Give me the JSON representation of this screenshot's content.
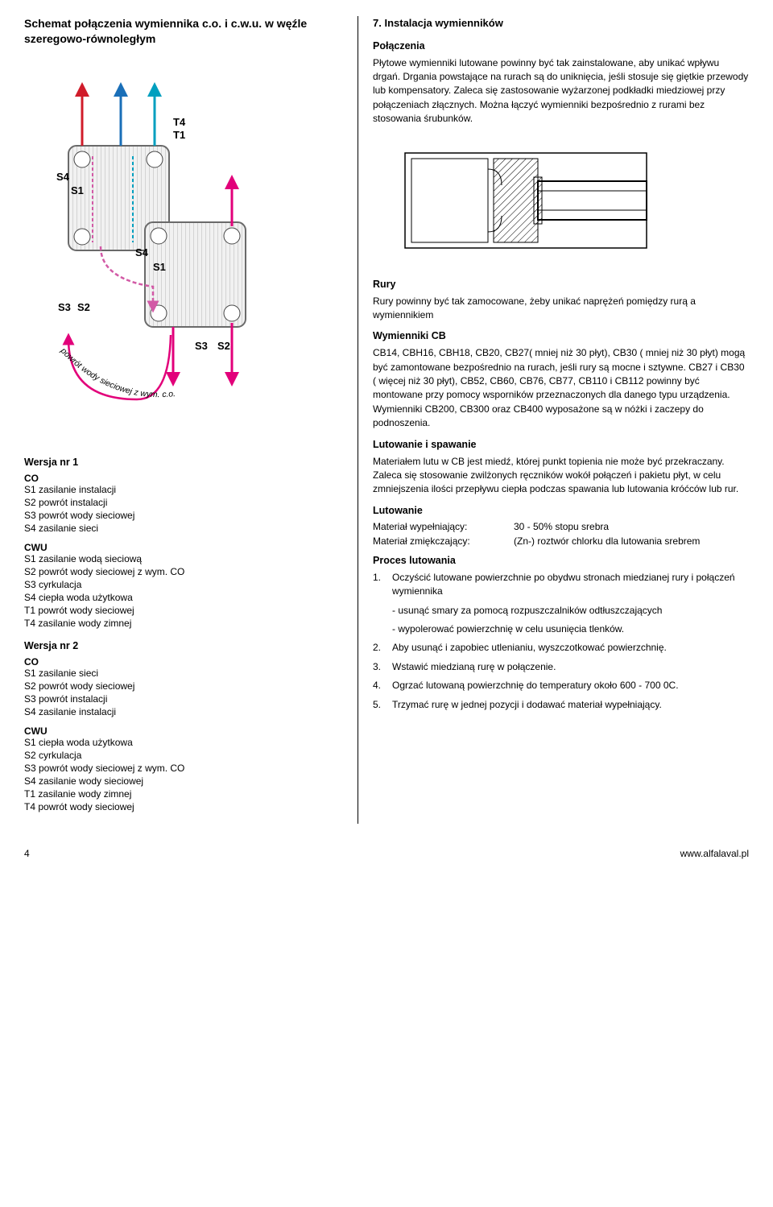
{
  "left": {
    "title": "Schemat połączenia wymiennika c.o. i c.w.u. w węźle szeregowo-równoległym",
    "v1_heading": "Wersja nr 1",
    "v2_heading": "Wersja nr 2",
    "co_label": "CO",
    "cwu_label": "CWU",
    "v1_co": [
      "S1  zasilanie instalacji",
      "S2  powrót instalacji",
      "S3  powrót wody sieciowej",
      "S4  zasilanie sieci"
    ],
    "v1_cwu": [
      "S1  zasilanie wodą sieciową",
      "S2  powrót wody sieciowej z wym. CO",
      "S3  cyrkulacja",
      "S4  ciepła woda użytkowa",
      "T1  powrót wody sieciowej",
      "T4  zasilanie wody zimnej"
    ],
    "v2_co": [
      "S1  zasilanie sieci",
      "S2  powrót wody sieciowej",
      "S3  powrót instalacji",
      "S4  zasilanie instalacji"
    ],
    "v2_cwu": [
      "S1  ciepła woda użytkowa",
      "S2  cyrkulacja",
      "S3  powrót wody sieciowej z wym. CO",
      "S4  zasilanie wody sieciowej",
      "T1  zasilanie wody zimnej",
      "T4  powrót wody sieciowej"
    ],
    "flow_caption": "powrót wody sieciowej z wym. c.o.",
    "diagram": {
      "plate_fill": "#f1f1f1",
      "plate_stroke": "#6a6a6a",
      "port_fill": "#ffffff",
      "port_stroke": "#444444",
      "arrow_colors": {
        "red": "#d01c2a",
        "blue": "#1a6fb8",
        "dash_pink": "#d25aa6",
        "dash_teal": "#009fbf",
        "magenta": "#e2007a"
      },
      "labels": [
        "T4",
        "T1",
        "S4",
        "S1",
        "S3",
        "S2"
      ]
    }
  },
  "right": {
    "section_num": "7. Instalacja wymienników",
    "conn_heading": "Połączenia",
    "conn_p1": "Płytowe wymienniki lutowane powinny być tak zainstalowane, aby unikać wpływu drgań. Drgania powstające na rurach są do uniknięcia, jeśli stosuje się giętkie przewody lub kompensatory. Zaleca się zastosowanie wyżarzonej podkładki miedziowej przy połączeniach złącznych. Można łączyć wymienniki bezpośrednio z rurami bez stosowania śrubunków.",
    "pipes_heading": "Rury",
    "pipes_p1": "Rury powinny być tak zamocowane, żeby unikać naprężeń pomiędzy rurą a wymiennikiem",
    "cb_heading": "Wymienniki CB",
    "cb_p1": "CB14, CBH16, CBH18, CB20, CB27( mniej niż 30 płyt), CB30 ( mniej niż 30 płyt) mogą być zamontowane bezpośrednio na rurach, jeśli rury są mocne i sztywne. CB27 i CB30 ( więcej niż 30 płyt), CB52, CB60, CB76, CB77, CB110 i CB112 powinny być montowane przy pomocy wsporników przeznaczonych dla danego typu urządzenia. Wymienniki CB200, CB300 oraz CB400 wyposażone są w nóżki i zaczepy do podnoszenia.",
    "braze_heading": "Lutowanie i spawanie",
    "braze_p1": "Materiałem lutu w CB jest miedź, której punkt topienia nie może być przekraczany. Zaleca się stosowanie zwilżonych ręczników wokół połączeń i pakietu płyt, w celu zmniejszenia ilości przepływu ciepła podczas spawania lub lutowania króćców lub rur.",
    "braze2_heading": "Lutowanie",
    "mat_fill_label": "Materiał wypełniający:",
    "mat_fill_value": "30 - 50% stopu srebra",
    "mat_soft_label": "Materiał zmiękczający:",
    "mat_soft_value": "(Zn-) roztwór chlorku dla lutowania srebrem",
    "process_heading": "Proces lutowania",
    "steps": [
      {
        "n": "1.",
        "t": "Oczyścić lutowane powierzchnie po obydwu stronach miedzianej rury i połączeń wymiennika"
      },
      {
        "n": "",
        "t": "- usunąć smary za pomocą rozpuszczalników odtłuszczających"
      },
      {
        "n": "",
        "t": "- wypolerować powierzchnię w celu usunięcia tlenków."
      },
      {
        "n": "2.",
        "t": "Aby usunąć i zapobiec utlenianiu, wyszczotkować powierzchnię."
      },
      {
        "n": "3.",
        "t": "Wstawić miedzianą rurę w połączenie."
      },
      {
        "n": "4.",
        "t": "Ogrzać lutowaną powierzchnię do temperatury około  600 - 700 0C."
      },
      {
        "n": "5.",
        "t": "Trzymać rurę w jednej pozycji i dodawać materiał wypełniający."
      }
    ],
    "joint_diagram": {
      "outline": "#000000",
      "hatch": "#000000",
      "fill": "#ffffff"
    }
  },
  "footer": {
    "page": "4",
    "url": "www.alfalaval.pl"
  }
}
